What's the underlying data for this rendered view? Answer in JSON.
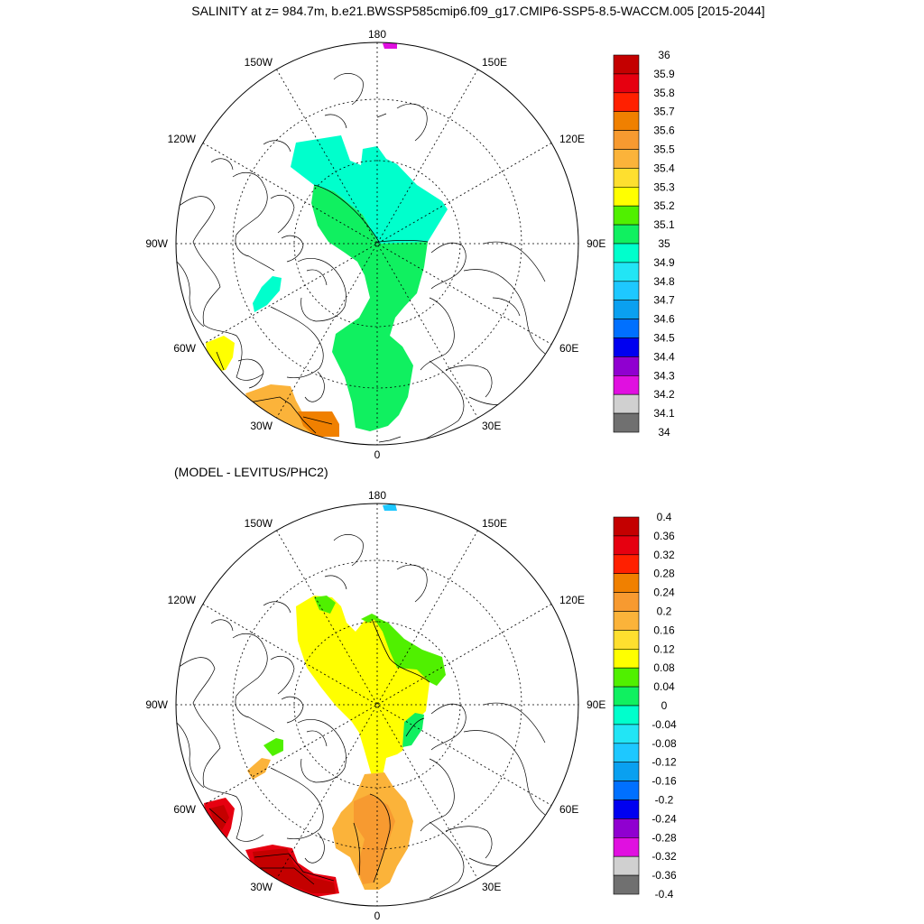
{
  "figure": {
    "title": "SALINITY at z= 984.7m, b.e21.BWSSP585cmip6.f09_g17.CMIP6-SSP5-8.5-WACCM.005 [2015-2044]",
    "panel2_title": "(MODEL - LEVITUS/PHC2)"
  },
  "map_labels": {
    "top": "180",
    "bottom": "0",
    "left": "90W",
    "right": "90E",
    "upper_left_outer": "150W",
    "upper_right_outer": "150E",
    "upper_left_inner": "120W",
    "upper_right_inner": "120E",
    "lower_left_inner": "60W",
    "lower_right_inner": "60E",
    "lower_left_outer": "30W",
    "lower_right_outer": "30E"
  },
  "colorbar1": {
    "ticks": [
      "36",
      "35.9",
      "35.8",
      "35.7",
      "35.6",
      "35.5",
      "35.4",
      "35.3",
      "35.2",
      "35.1",
      "35",
      "34.9",
      "34.8",
      "34.7",
      "34.6",
      "34.5",
      "34.4",
      "34.3",
      "34.2",
      "34.1",
      "34"
    ],
    "colors": [
      "#c40000",
      "#e60010",
      "#ff2000",
      "#f08000",
      "#f79a30",
      "#fbb33a",
      "#fedf2f",
      "#ffff00",
      "#50f000",
      "#10f060",
      "#00ffcc",
      "#22e5f5",
      "#1ec8ff",
      "#0aa0f0",
      "#0070ff",
      "#0000f0",
      "#9000d0",
      "#e010e0",
      "#d0d0d0",
      "#707070"
    ]
  },
  "colorbar2": {
    "ticks": [
      "0.4",
      "0.36",
      "0.32",
      "0.28",
      "0.24",
      "0.2",
      "0.16",
      "0.12",
      "0.08",
      "0.04",
      "0",
      "-0.04",
      "-0.08",
      "-0.12",
      "-0.16",
      "-0.2",
      "-0.24",
      "-0.28",
      "-0.32",
      "-0.36",
      "-0.4"
    ],
    "colors": [
      "#c40000",
      "#e60010",
      "#ff2000",
      "#f08000",
      "#f79a30",
      "#fbb33a",
      "#fedf2f",
      "#ffff00",
      "#50f000",
      "#10f060",
      "#00ffcc",
      "#22e5f5",
      "#1ec8ff",
      "#0aa0f0",
      "#0070ff",
      "#0000f0",
      "#9000d0",
      "#e010e0",
      "#d0d0d0",
      "#707070"
    ]
  }
}
